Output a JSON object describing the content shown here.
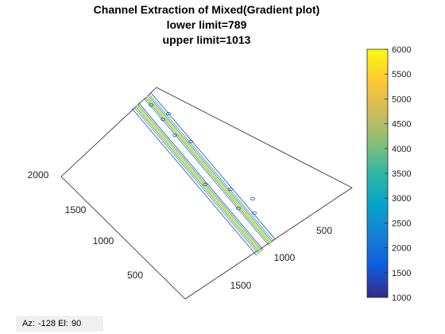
{
  "title": {
    "line1": "Channel Extraction of Mixed(Gradient plot)",
    "line2": "lower limit=789",
    "line3": "upper limit=1013"
  },
  "view": {
    "az_label": "Az:",
    "az_value": "-128",
    "el_label": "El:",
    "el_value": "90"
  },
  "chart_data": {
    "type": "contour",
    "colormap": "parula",
    "x_ticks": [
      500,
      1000,
      1500,
      2000
    ],
    "y_ticks": [
      500,
      1000
    ],
    "colorbar": {
      "ticks": [
        1000,
        1500,
        2000,
        2500,
        3000,
        3500,
        4000,
        4500,
        5000,
        5500,
        6000
      ],
      "min": 1000,
      "max": 6000
    }
  }
}
